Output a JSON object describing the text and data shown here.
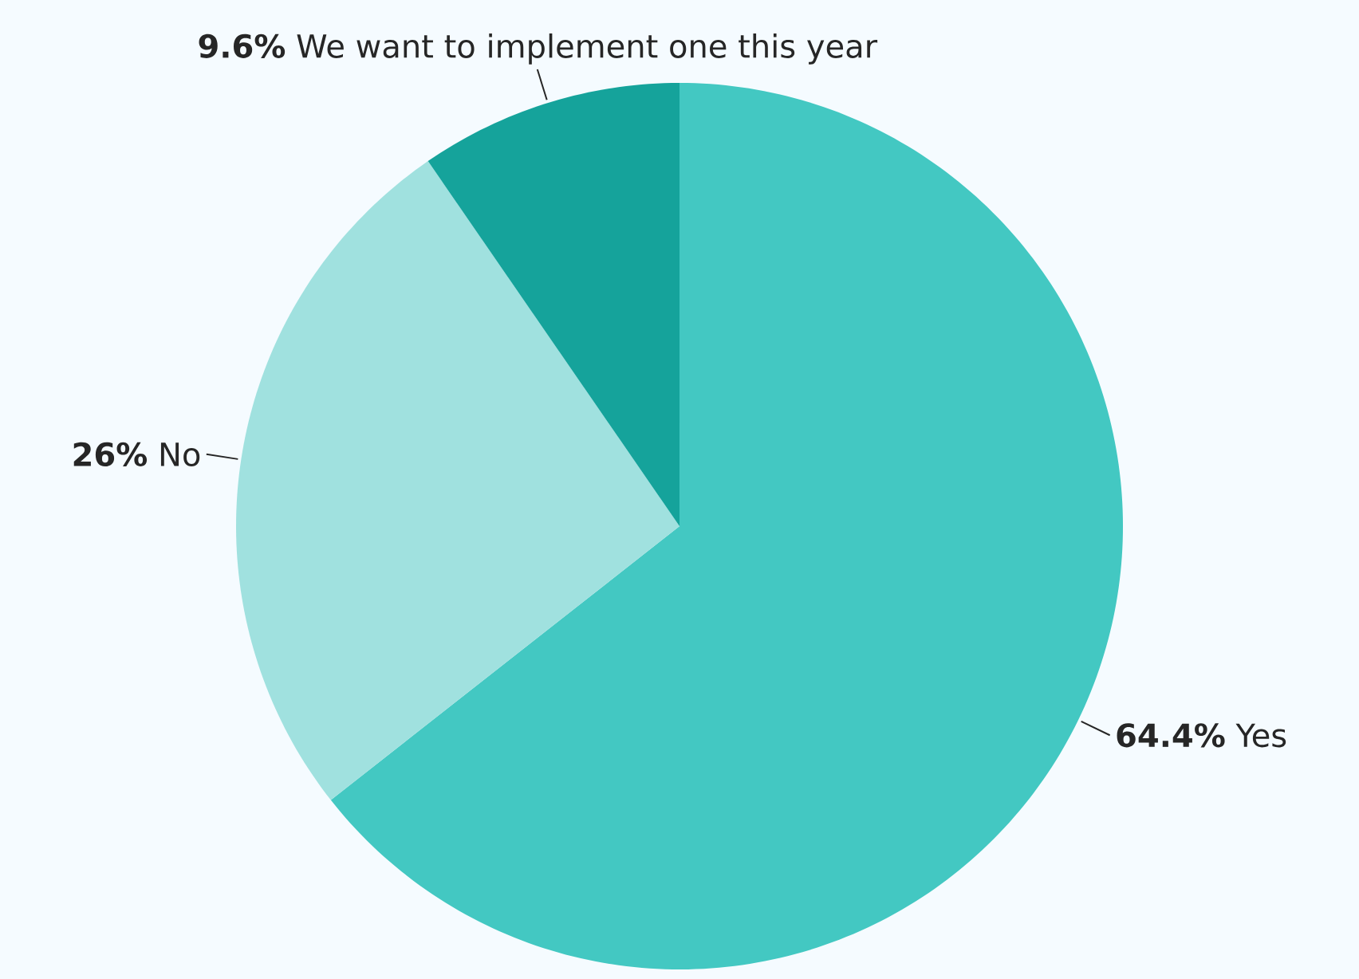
{
  "chart_data": {
    "type": "pie",
    "categories": [
      "Yes",
      "No",
      "We want to implement one this year"
    ],
    "values": [
      64.4,
      26,
      9.6
    ],
    "value_labels": [
      "64.4%",
      "26%",
      "9.6%"
    ],
    "colors": [
      "#43c8c2",
      "#a0e1df",
      "#15a39b"
    ]
  }
}
